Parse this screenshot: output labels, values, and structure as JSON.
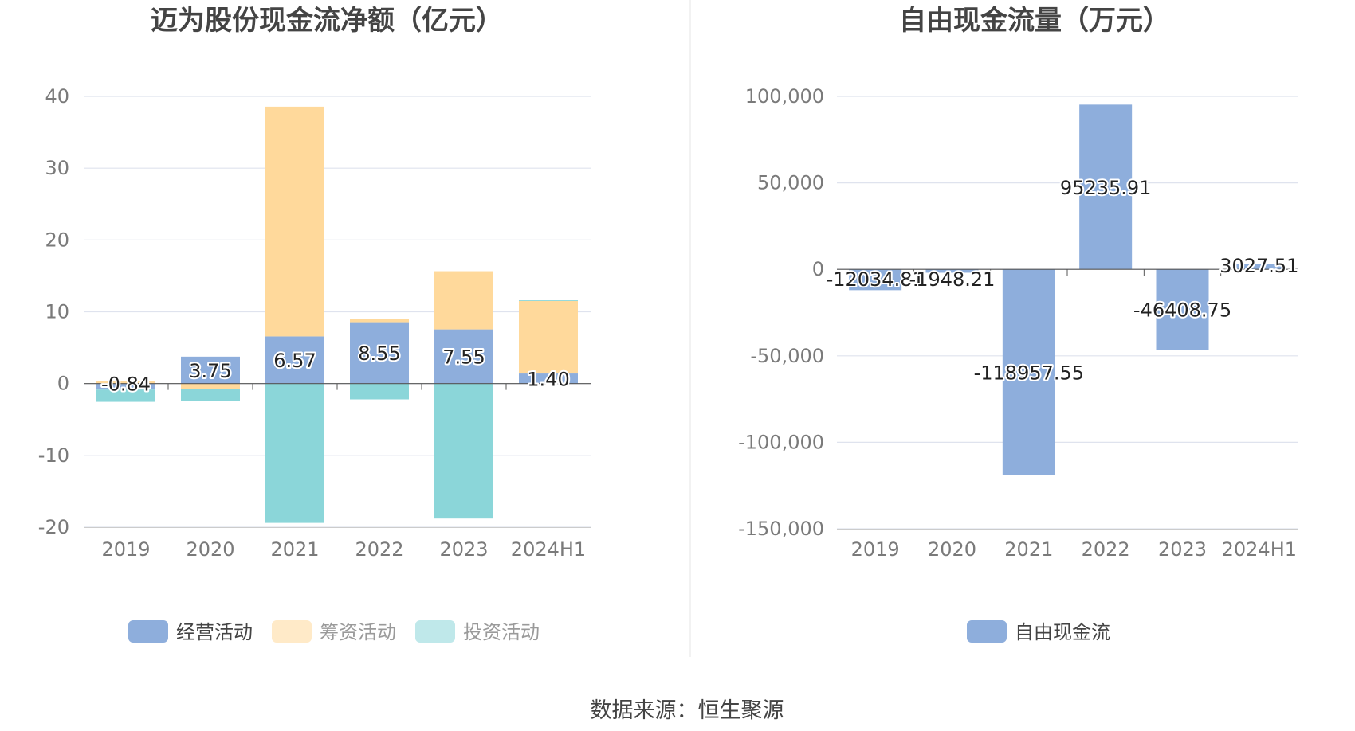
{
  "source_label": "数据来源：恒生聚源",
  "chart_data": [
    {
      "type": "bar",
      "stacked": true,
      "title": "迈为股份现金流净额（亿元）",
      "categories": [
        "2019",
        "2020",
        "2021",
        "2022",
        "2023",
        "2024H1"
      ],
      "ylim": [
        -20,
        40
      ],
      "yticks": [
        40,
        30,
        20,
        10,
        0,
        -10,
        -20
      ],
      "ytick_labels": [
        "40",
        "30",
        "20",
        "10",
        "0",
        "-10",
        "-20"
      ],
      "grid": true,
      "legend_position": "bottom",
      "series": [
        {
          "name": "经营活动",
          "color": "#8eaedc",
          "values": [
            -0.84,
            3.75,
            6.57,
            8.55,
            7.55,
            1.4
          ],
          "labels": [
            "-0.84",
            "3.75",
            "6.57",
            "8.55",
            "7.55",
            "1.40"
          ]
        },
        {
          "name": "筹资活动",
          "color": "#ffd99b",
          "values": [
            0.3,
            -0.8,
            32.0,
            0.5,
            8.1,
            10.1
          ]
        },
        {
          "name": "投资活动",
          "color": "#8bd6d9",
          "values": [
            -1.7,
            -1.6,
            -19.4,
            -2.2,
            -18.8,
            0.1
          ]
        }
      ]
    },
    {
      "type": "bar",
      "title": "自由现金流量（万元）",
      "categories": [
        "2019",
        "2020",
        "2021",
        "2022",
        "2023",
        "2024H1"
      ],
      "ylim": [
        -150000,
        100000
      ],
      "yticks": [
        100000,
        50000,
        0,
        -50000,
        -100000,
        -150000
      ],
      "ytick_labels": [
        "100,000",
        "50,000",
        "0",
        "-50,000",
        "-100,000",
        "-150,000"
      ],
      "grid": true,
      "legend_position": "bottom",
      "series": [
        {
          "name": "自由现金流",
          "color": "#8eaedc",
          "values": [
            -12034.81,
            -1948.21,
            -118957.55,
            95235.91,
            -46408.75,
            3027.51
          ],
          "labels": [
            "-12034.81",
            "-1948.21",
            "-118957.55",
            "95235.91",
            "-46408.75",
            "3027.51"
          ]
        }
      ]
    }
  ]
}
